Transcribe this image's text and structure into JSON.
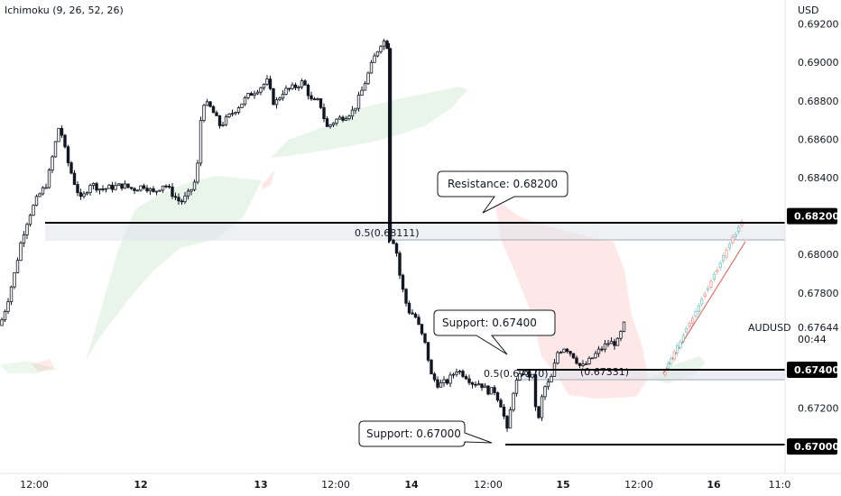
{
  "indicator": {
    "label": "Ichimoku (9, 26, 52, 26)"
  },
  "currency": "USD",
  "symbol": "AUDUSD",
  "countdown": "00:44",
  "chart_data": {
    "type": "candlestick",
    "y_unit": "USD",
    "ylim": [
      0.6686,
      0.69325
    ],
    "y_ticks": [
      {
        "value": 0.692,
        "label": "0.69200"
      },
      {
        "value": 0.69,
        "label": "0.69000"
      },
      {
        "value": 0.688,
        "label": "0.68800"
      },
      {
        "value": 0.686,
        "label": "0.68600"
      },
      {
        "value": 0.684,
        "label": "0.68400"
      },
      {
        "value": 0.68,
        "label": "0.68000"
      },
      {
        "value": 0.678,
        "label": "0.67800"
      },
      {
        "value": 0.672,
        "label": "0.67200"
      }
    ],
    "x_ticks": [
      "12:00",
      "12",
      "13",
      "12:00",
      "14",
      "12:00",
      "15",
      "12:00",
      "16",
      "11:0"
    ],
    "last_price": {
      "value": 0.67644,
      "label": "0.67644"
    },
    "levels": [
      {
        "value": 0.682,
        "label": "0.68200",
        "annotation": "Resistance: 0.68200"
      },
      {
        "value": 0.674,
        "label": "0.67400",
        "annotation": "Support: 0.67400"
      },
      {
        "value": 0.67,
        "label": "0.67000",
        "annotation": "Support: 0.67000"
      }
    ],
    "fib_labels": [
      {
        "text": "0.5(0.68111)",
        "value": 0.68111
      },
      {
        "text": "0.5(0.67370)",
        "value": 0.6737
      },
      {
        "text": "(0.67331)",
        "value": 0.67331
      }
    ],
    "colors": {
      "bull": "#ffffff",
      "bear": "#131722",
      "cloud_bull": "#4caf50",
      "cloud_bear": "#f44336",
      "level_line": "#000000",
      "zone": "#e0e3eb",
      "projection_up": "#26a69a",
      "projection_down": "#ef5350",
      "label_bg": "#000000"
    },
    "price_path": [
      [
        0,
        0.6763
      ],
      [
        8,
        0.6775
      ],
      [
        16,
        0.679
      ],
      [
        24,
        0.6808
      ],
      [
        32,
        0.682
      ],
      [
        42,
        0.683
      ],
      [
        52,
        0.6837
      ],
      [
        60,
        0.6855
      ],
      [
        66,
        0.6868
      ],
      [
        74,
        0.685
      ],
      [
        82,
        0.6838
      ],
      [
        90,
        0.6828
      ],
      [
        100,
        0.6837
      ],
      [
        112,
        0.6834
      ],
      [
        124,
        0.6835
      ],
      [
        136,
        0.6836
      ],
      [
        148,
        0.6834
      ],
      [
        160,
        0.6836
      ],
      [
        170,
        0.6832
      ],
      [
        182,
        0.6837
      ],
      [
        192,
        0.6831
      ],
      [
        200,
        0.6827
      ],
      [
        210,
        0.6832
      ],
      [
        218,
        0.684
      ],
      [
        224,
        0.688
      ],
      [
        234,
        0.6876
      ],
      [
        244,
        0.6867
      ],
      [
        254,
        0.6872
      ],
      [
        264,
        0.6877
      ],
      [
        276,
        0.6883
      ],
      [
        288,
        0.6887
      ],
      [
        296,
        0.689
      ],
      [
        304,
        0.6878
      ],
      [
        314,
        0.6885
      ],
      [
        326,
        0.6887
      ],
      [
        336,
        0.689
      ],
      [
        346,
        0.6879
      ],
      [
        354,
        0.688
      ],
      [
        362,
        0.6866
      ],
      [
        372,
        0.687
      ],
      [
        382,
        0.6872
      ],
      [
        392,
        0.6875
      ],
      [
        400,
        0.6884
      ],
      [
        408,
        0.6894
      ],
      [
        416,
        0.6904
      ],
      [
        424,
        0.6912
      ],
      [
        430,
        0.6908
      ],
      [
        432,
        0.6809
      ],
      [
        438,
        0.6806
      ],
      [
        444,
        0.6786
      ],
      [
        452,
        0.6771
      ],
      [
        460,
        0.6768
      ],
      [
        466,
        0.676
      ],
      [
        472,
        0.6752
      ],
      [
        478,
        0.6737
      ],
      [
        486,
        0.6732
      ],
      [
        496,
        0.6734
      ],
      [
        506,
        0.674
      ],
      [
        516,
        0.6737
      ],
      [
        524,
        0.6733
      ],
      [
        532,
        0.6733
      ],
      [
        540,
        0.6729
      ],
      [
        548,
        0.6729
      ],
      [
        556,
        0.6721
      ],
      [
        562,
        0.6708
      ],
      [
        570,
        0.6732
      ],
      [
        580,
        0.6739
      ],
      [
        590,
        0.6736
      ],
      [
        596,
        0.6711
      ],
      [
        602,
        0.673
      ],
      [
        610,
        0.6734
      ],
      [
        618,
        0.6749
      ],
      [
        626,
        0.6752
      ],
      [
        636,
        0.6747
      ],
      [
        644,
        0.6741
      ],
      [
        652,
        0.6744
      ],
      [
        664,
        0.675
      ],
      [
        674,
        0.6754
      ],
      [
        684,
        0.6754
      ],
      [
        692,
        0.6764
      ]
    ]
  }
}
